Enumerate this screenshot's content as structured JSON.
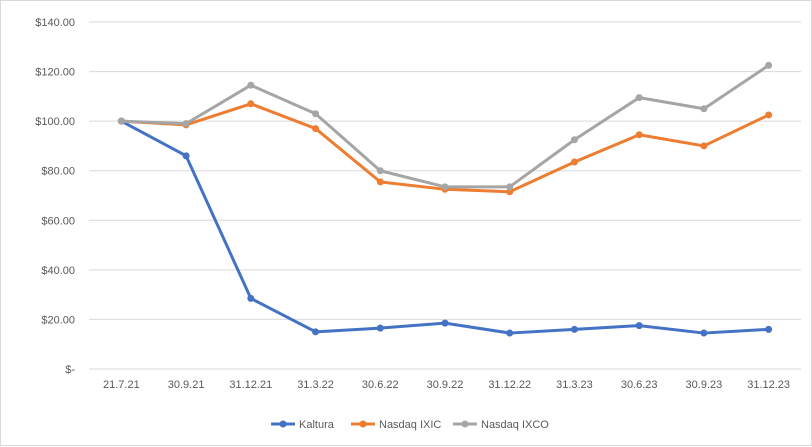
{
  "chart_data": {
    "type": "line",
    "title": "",
    "xlabel": "",
    "ylabel": "",
    "categories": [
      "21.7.21",
      "30.9.21",
      "31.12.21",
      "31.3.22",
      "30.6.22",
      "30.9.22",
      "31.12.22",
      "31.3.23",
      "30.6.23",
      "30.9.23",
      "31.12.23"
    ],
    "ylim": [
      0,
      140
    ],
    "y_ticks": [
      0,
      20,
      40,
      60,
      80,
      100,
      120,
      140
    ],
    "y_tick_labels": [
      "$-",
      "$20.00",
      "$40.00",
      "$60.00",
      "$80.00",
      "$100.00",
      "$120.00",
      "$140.00"
    ],
    "grid": "horizontal",
    "legend_position": "bottom",
    "series": [
      {
        "name": "Kaltura",
        "color": "#4472c4",
        "values": [
          100,
          86,
          28.5,
          15,
          16.5,
          18.5,
          14.5,
          16,
          17.5,
          14.5,
          16
        ]
      },
      {
        "name": "Nasdaq IXIC",
        "color": "#ed7d31",
        "values": [
          100,
          98.5,
          107,
          97,
          75.5,
          72.5,
          71.5,
          83.5,
          94.5,
          90,
          102.5
        ]
      },
      {
        "name": "Nasdaq IXCO",
        "color": "#a5a5a5",
        "values": [
          100,
          99,
          114.5,
          103,
          80,
          73.5,
          73.5,
          92.5,
          109.5,
          105,
          122.5
        ]
      }
    ]
  }
}
